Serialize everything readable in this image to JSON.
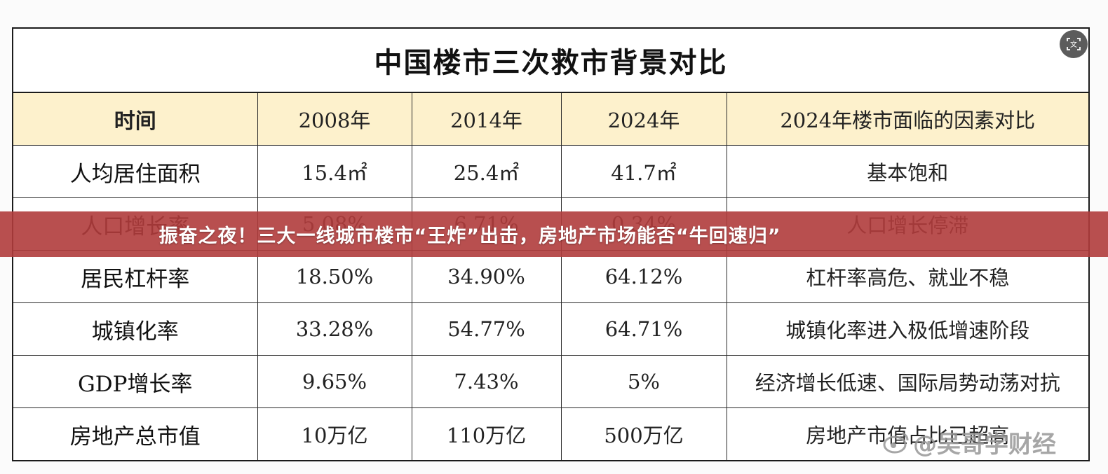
{
  "table": {
    "title": "中国楼市三次救市背景对比",
    "headers": [
      "时间",
      "2008年",
      "2014年",
      "2024年",
      "2024年楼市面临的因素对比"
    ],
    "rows": [
      [
        "人均居住面积",
        "15.4㎡",
        "25.4㎡",
        "41.7㎡",
        "基本饱和"
      ],
      [
        "人口增长率",
        "5.08%",
        "6.71%",
        "0.34%",
        "人口增长停滞"
      ],
      [
        "居民杠杆率",
        "18.50%",
        "34.90%",
        "64.12%",
        "杠杆率高危、就业不稳"
      ],
      [
        "城镇化率",
        "33.28%",
        "54.77%",
        "64.71%",
        "城镇化率进入极低增速阶段"
      ],
      [
        "GDP增长率",
        "9.65%",
        "7.43%",
        "5%",
        "经济增长低速、国际局势动荡对抗"
      ],
      [
        "房地产总市值",
        "10万亿",
        "110万亿",
        "500万亿",
        "房地产市值占比已超高"
      ]
    ]
  },
  "banner": {
    "text": "振奋之夜！三大一线城市楼市“王炸”出击，房地产市场能否“牛回速归”"
  },
  "watermark": {
    "text": "@吴哥学财经"
  },
  "icons": {
    "lens": "image-search-icon"
  },
  "colors": {
    "header_bg": "#fdf1cc",
    "banner_bg": "#b03c3c",
    "border": "#1b1b1b"
  }
}
